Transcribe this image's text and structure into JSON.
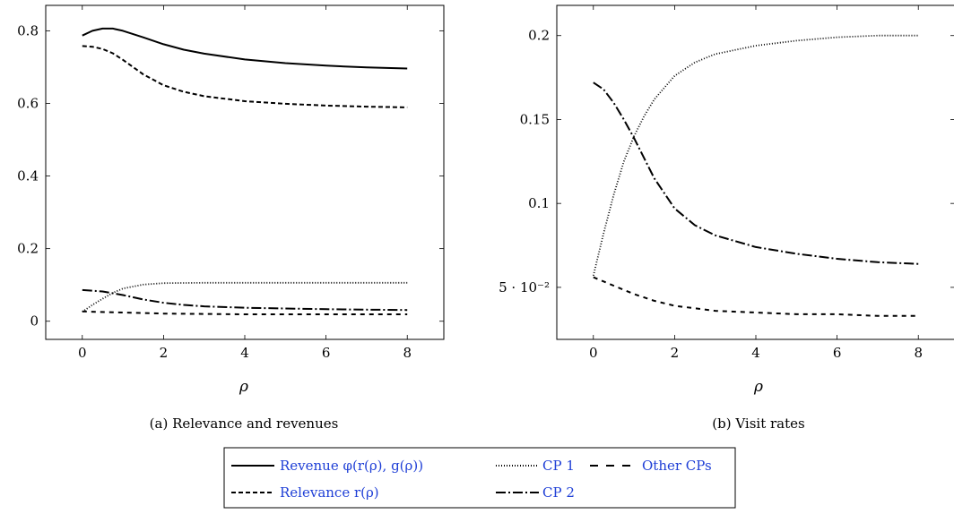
{
  "chart_data": [
    {
      "type": "line",
      "caption": "(a) Relevance and revenues",
      "xlabel": "ρ",
      "ylabel": "",
      "xlim": [
        -0.9,
        8.9
      ],
      "ylim": [
        -0.05,
        0.87
      ],
      "xticks": [
        0,
        2,
        4,
        6,
        8
      ],
      "xtick_labels": [
        "0",
        "2",
        "4",
        "6",
        "8"
      ],
      "yticks": [
        0,
        0.2,
        0.4,
        0.6,
        0.8
      ],
      "ytick_labels": [
        "0",
        "0.2",
        "0.4",
        "0.6",
        "0.8"
      ],
      "grid": false,
      "series": [
        {
          "key": "revenue",
          "x": [
            0,
            0.25,
            0.5,
            0.75,
            1,
            1.5,
            2,
            2.5,
            3,
            4,
            5,
            6,
            7,
            8
          ],
          "values": [
            0.787,
            0.8,
            0.806,
            0.806,
            0.8,
            0.782,
            0.763,
            0.748,
            0.737,
            0.721,
            0.711,
            0.704,
            0.699,
            0.696
          ]
        },
        {
          "key": "relevance",
          "x": [
            0,
            0.25,
            0.5,
            0.75,
            1,
            1.5,
            2,
            2.5,
            3,
            4,
            5,
            6,
            7,
            8
          ],
          "values": [
            0.758,
            0.756,
            0.75,
            0.738,
            0.72,
            0.68,
            0.65,
            0.632,
            0.62,
            0.606,
            0.599,
            0.594,
            0.591,
            0.589
          ]
        },
        {
          "key": "cp1",
          "x": [
            0,
            0.25,
            0.5,
            0.75,
            1,
            1.5,
            2,
            3,
            4,
            5,
            6,
            7,
            8
          ],
          "values": [
            0.026,
            0.045,
            0.062,
            0.078,
            0.09,
            0.101,
            0.105,
            0.106,
            0.106,
            0.106,
            0.106,
            0.106,
            0.106
          ]
        },
        {
          "key": "cp2",
          "x": [
            0,
            0.5,
            1,
            1.5,
            2,
            2.5,
            3,
            4,
            5,
            6,
            7,
            8
          ],
          "values": [
            0.086,
            0.082,
            0.072,
            0.06,
            0.051,
            0.045,
            0.041,
            0.037,
            0.035,
            0.033,
            0.032,
            0.031
          ]
        },
        {
          "key": "other",
          "x": [
            0,
            1,
            2,
            3,
            4,
            5,
            6,
            7,
            8
          ],
          "values": [
            0.027,
            0.024,
            0.021,
            0.02,
            0.019,
            0.019,
            0.019,
            0.019,
            0.019
          ]
        }
      ]
    },
    {
      "type": "line",
      "caption": "(b) Visit rates",
      "xlabel": "ρ",
      "ylabel": "",
      "xlim": [
        -0.9,
        8.9
      ],
      "ylim": [
        0.019,
        0.218
      ],
      "xticks": [
        0,
        2,
        4,
        6,
        8
      ],
      "xtick_labels": [
        "0",
        "2",
        "4",
        "6",
        "8"
      ],
      "yticks": [
        0.05,
        0.1,
        0.15,
        0.2
      ],
      "ytick_labels": [
        "5 · 10⁻²",
        "0.1",
        "0.15",
        "0.2"
      ],
      "grid": false,
      "series": [
        {
          "key": "cp1",
          "x": [
            0,
            0.25,
            0.5,
            0.75,
            1,
            1.25,
            1.5,
            2,
            2.5,
            3,
            4,
            5,
            6,
            7,
            8
          ],
          "values": [
            0.057,
            0.082,
            0.105,
            0.125,
            0.14,
            0.152,
            0.162,
            0.176,
            0.184,
            0.189,
            0.194,
            0.197,
            0.199,
            0.2,
            0.2
          ]
        },
        {
          "key": "cp2",
          "x": [
            0,
            0.25,
            0.5,
            0.75,
            1,
            1.25,
            1.5,
            2,
            2.5,
            3,
            4,
            5,
            6,
            7,
            8
          ],
          "values": [
            0.172,
            0.168,
            0.16,
            0.15,
            0.139,
            0.127,
            0.115,
            0.097,
            0.087,
            0.081,
            0.074,
            0.07,
            0.067,
            0.065,
            0.064
          ]
        },
        {
          "key": "other",
          "x": [
            0,
            0.5,
            1,
            1.5,
            2,
            3,
            4,
            5,
            6,
            7,
            8
          ],
          "values": [
            0.056,
            0.051,
            0.046,
            0.042,
            0.039,
            0.036,
            0.035,
            0.034,
            0.034,
            0.033,
            0.033
          ]
        }
      ]
    }
  ],
  "legend": {
    "placement": "bottom-center",
    "entries": [
      {
        "key": "revenue",
        "label": "Revenue φ(r(ρ), g(ρ))"
      },
      {
        "key": "cp1",
        "label": "CP 1"
      },
      {
        "key": "other",
        "label": "Other CPs"
      },
      {
        "key": "relevance",
        "label": "Relevance r(ρ)"
      },
      {
        "key": "cp2",
        "label": "CP 2"
      }
    ]
  }
}
